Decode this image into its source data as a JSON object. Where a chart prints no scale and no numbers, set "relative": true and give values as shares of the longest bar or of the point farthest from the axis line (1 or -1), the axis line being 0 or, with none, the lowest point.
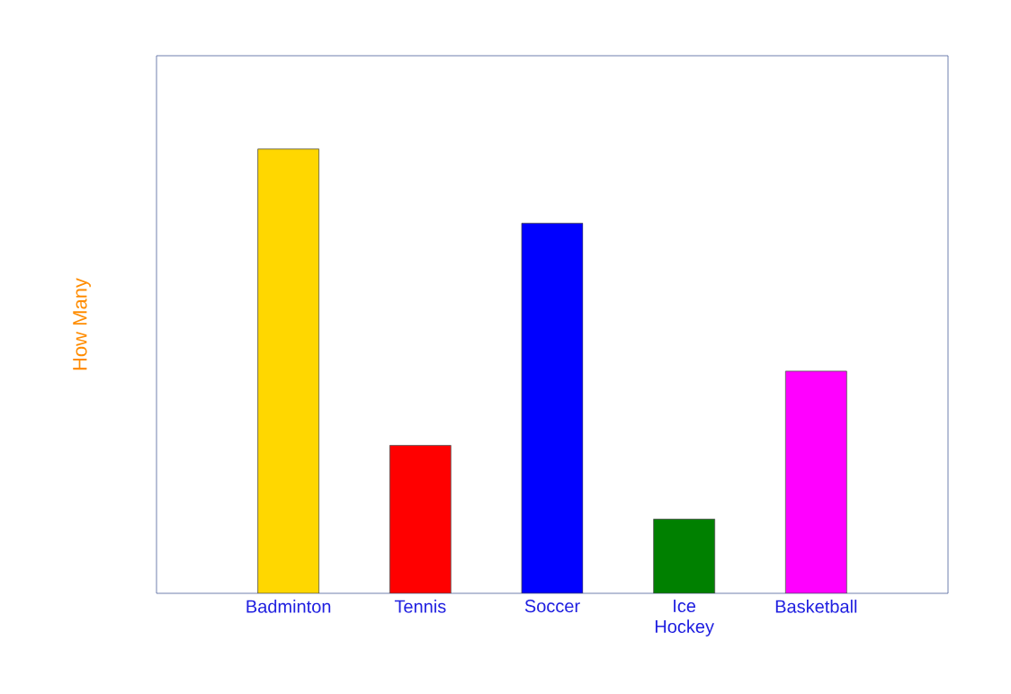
{
  "chart_data": {
    "type": "bar",
    "relative": true,
    "ylabel": "How Many",
    "categories": [
      "Badminton",
      "Tennis",
      "Soccer",
      "Ice Hockey",
      "Basketball"
    ],
    "values": [
      1,
      0.333,
      0.833,
      0.167,
      0.5
    ],
    "colors": [
      "#ffd700",
      "#ff0000",
      "#0000ff",
      "#008000",
      "#ff00ff"
    ]
  }
}
